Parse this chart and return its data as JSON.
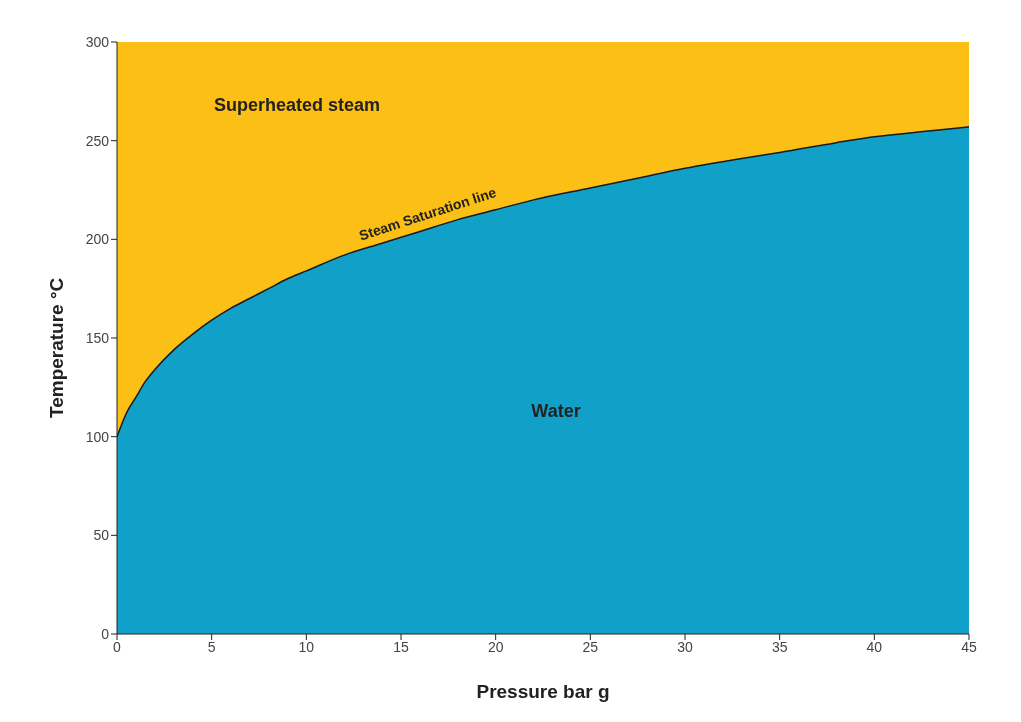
{
  "chart_data": {
    "type": "area",
    "xlabel": "Pressure bar g",
    "ylabel": "Temperature °C",
    "x": [
      0,
      0.5,
      1,
      1.5,
      2,
      3,
      4,
      5,
      6,
      7,
      8,
      9,
      10,
      12,
      14,
      16,
      18,
      20,
      22,
      25,
      28,
      30,
      33,
      35,
      38,
      40,
      43,
      45
    ],
    "series": [
      {
        "name": "Superheated steam",
        "color": "#fcbf16",
        "values": [
          300,
          300,
          300,
          300,
          300,
          300,
          300,
          300,
          300,
          300,
          300,
          300,
          300,
          300,
          300,
          300,
          300,
          300,
          300,
          300,
          300,
          300,
          300,
          300,
          300,
          300,
          300,
          300
        ]
      },
      {
        "name": "Water",
        "color": "#11a0c8",
        "values": [
          100,
          112,
          120,
          128,
          134,
          144,
          152,
          159,
          165,
          170,
          175,
          180,
          184,
          192,
          198,
          204,
          210,
          215,
          220,
          226,
          232,
          236,
          241,
          244,
          249,
          252,
          255,
          257
        ]
      }
    ],
    "annotations": [
      "Steam Saturation line"
    ],
    "xlim": [
      0,
      45
    ],
    "xticks": [
      0,
      5,
      10,
      15,
      20,
      25,
      30,
      35,
      40,
      45
    ],
    "ylim": [
      0,
      300
    ],
    "yticks": [
      0,
      50,
      100,
      150,
      200,
      250,
      300
    ]
  }
}
